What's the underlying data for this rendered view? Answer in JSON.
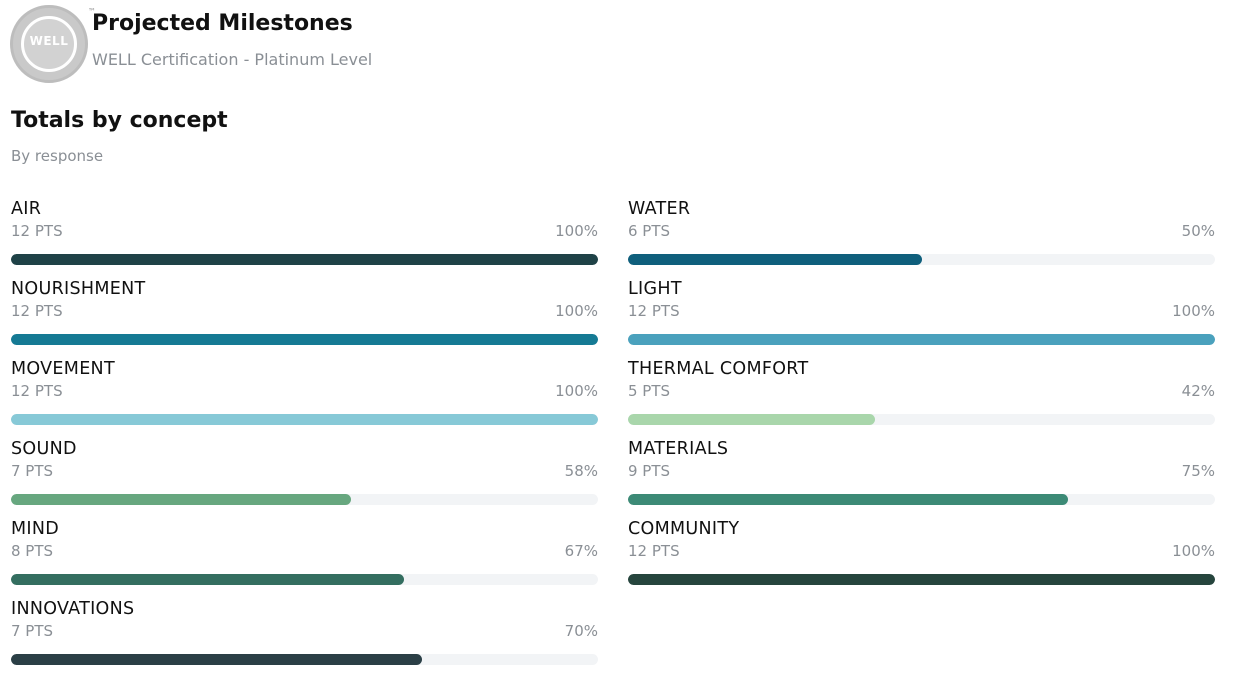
{
  "header": {
    "badge_text": "WELL",
    "title": "Projected Milestones",
    "subtitle": "WELL Certification - Platinum Level"
  },
  "section": {
    "title": "Totals by concept",
    "subtitle": "By response"
  },
  "concepts_left": [
    {
      "name": "AIR",
      "points": "12 PTS",
      "percent": "100%",
      "value": 1.0,
      "color": "#1f4247"
    },
    {
      "name": "NOURISHMENT",
      "points": "12 PTS",
      "percent": "100%",
      "value": 1.0,
      "color": "#157a94"
    },
    {
      "name": "MOVEMENT",
      "points": "12 PTS",
      "percent": "100%",
      "value": 1.0,
      "color": "#87c9d7"
    },
    {
      "name": "SOUND",
      "points": "7 PTS",
      "percent": "58%",
      "value": 0.58,
      "color": "#67a77f"
    },
    {
      "name": "MIND",
      "points": "8 PTS",
      "percent": "67%",
      "value": 0.67,
      "color": "#346e60"
    },
    {
      "name": "INNOVATIONS",
      "points": "7 PTS",
      "percent": "70%",
      "value": 0.7,
      "color": "#2b3f46"
    }
  ],
  "concepts_right": [
    {
      "name": "WATER",
      "points": "6 PTS",
      "percent": "50%",
      "value": 0.5,
      "color": "#0f5f7c"
    },
    {
      "name": "LIGHT",
      "points": "12 PTS",
      "percent": "100%",
      "value": 1.0,
      "color": "#4aa1bd"
    },
    {
      "name": "THERMAL COMFORT",
      "points": "5 PTS",
      "percent": "42%",
      "value": 0.42,
      "color": "#a9d6ab"
    },
    {
      "name": "MATERIALS",
      "points": "9 PTS",
      "percent": "75%",
      "value": 0.75,
      "color": "#3c8a76"
    },
    {
      "name": "COMMUNITY",
      "points": "12 PTS",
      "percent": "100%",
      "value": 1.0,
      "color": "#26453d"
    }
  ]
}
